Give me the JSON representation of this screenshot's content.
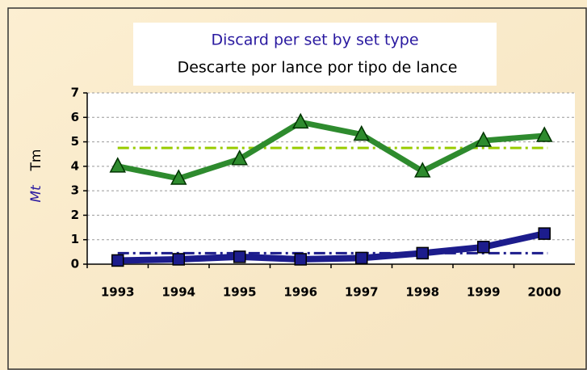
{
  "chart_data": {
    "type": "line",
    "title": "Discard per set by set type",
    "subtitle": "Descarte por lance por tipo de lance",
    "title_color": "#2a1aa0",
    "y_labels": [
      {
        "text": "Mt",
        "color": "#2a1aa0"
      },
      {
        "text": "Tm",
        "color": "#000000"
      }
    ],
    "categories": [
      "1993",
      "1994",
      "1995",
      "1996",
      "1997",
      "1998",
      "1999",
      "2000"
    ],
    "series": [
      {
        "color": "#2e8b2e",
        "marker": "triangle",
        "values": [
          4.0,
          3.5,
          4.3,
          5.8,
          5.3,
          3.8,
          5.05,
          5.25
        ]
      },
      {
        "color": "#1c1c8c",
        "marker": "square",
        "values": [
          0.15,
          0.2,
          0.3,
          0.2,
          0.25,
          0.45,
          0.7,
          1.25
        ]
      }
    ],
    "reference_lines": [
      {
        "value": 4.75,
        "color": "#99cc00"
      },
      {
        "value": 0.45,
        "color": "#1c1c8c"
      }
    ],
    "ylim": [
      0,
      7
    ],
    "yticks": [
      0,
      1,
      2,
      3,
      4,
      5,
      6,
      7
    ],
    "grid": true
  }
}
